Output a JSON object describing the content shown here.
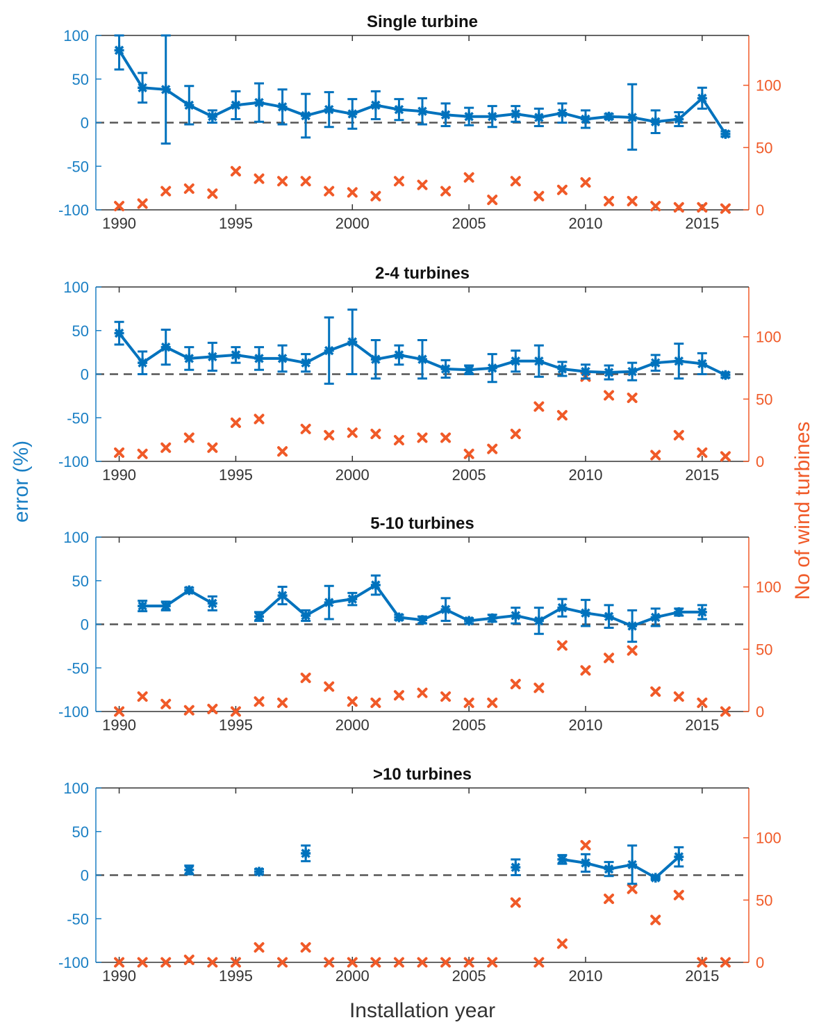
{
  "colors": {
    "error": "#0072bd",
    "error_axis": "#1a7fc4",
    "count": "#f05a28",
    "zero_line": "#555555",
    "axis": "#333333"
  },
  "figure": {
    "ylabel_left": "error (%)",
    "ylabel_right": "No of wind turbines",
    "xlabel": "Installation year"
  },
  "chart_data": [
    {
      "type": "line",
      "title": "Single turbine",
      "xlim": [
        1989,
        2017
      ],
      "ylim_left": [
        -100,
        100
      ],
      "ylim_right": [
        0,
        140
      ],
      "xticks": [
        1990,
        1995,
        2000,
        2005,
        2010,
        2015
      ],
      "yticks_left": [
        -100,
        -50,
        0,
        50,
        100
      ],
      "yticks_right": [
        0,
        50,
        100
      ],
      "zero_line": 0,
      "error_series": {
        "name": "error (%)",
        "x": [
          1990,
          1991,
          1992,
          1993,
          1994,
          1995,
          1996,
          1997,
          1998,
          1999,
          2000,
          2001,
          2002,
          2003,
          2004,
          2005,
          2006,
          2007,
          2008,
          2009,
          2010,
          2011,
          2012,
          2013,
          2014,
          2015,
          2016
        ],
        "y": [
          83,
          40,
          38,
          20,
          7,
          20,
          23,
          18,
          8,
          15,
          10,
          20,
          15,
          13,
          9,
          7,
          7,
          10,
          6,
          11,
          4,
          7,
          6,
          1,
          4,
          28,
          -13
        ],
        "err_low": [
          22,
          17,
          62,
          22,
          7,
          16,
          22,
          20,
          25,
          20,
          17,
          16,
          12,
          15,
          13,
          10,
          12,
          9,
          10,
          11,
          10,
          3,
          37,
          13,
          8,
          12,
          3
        ],
        "err_high": [
          17,
          17,
          62,
          22,
          7,
          16,
          22,
          20,
          25,
          20,
          17,
          16,
          12,
          15,
          13,
          10,
          12,
          9,
          10,
          11,
          10,
          3,
          38,
          13,
          8,
          12,
          3
        ]
      },
      "count_series": {
        "name": "No of wind turbines",
        "x": [
          1990,
          1991,
          1992,
          1993,
          1994,
          1995,
          1996,
          1997,
          1998,
          1999,
          2000,
          2001,
          2002,
          2003,
          2004,
          2005,
          2006,
          2007,
          2008,
          2009,
          2010,
          2011,
          2012,
          2013,
          2014,
          2015,
          2016
        ],
        "y": [
          3,
          5,
          15,
          17,
          13,
          31,
          25,
          23,
          23,
          15,
          14,
          11,
          23,
          20,
          15,
          26,
          8,
          23,
          11,
          16,
          22,
          7,
          7,
          3,
          2,
          2,
          1
        ]
      }
    },
    {
      "type": "line",
      "title": "2-4 turbines",
      "xlim": [
        1989,
        2017
      ],
      "ylim_left": [
        -100,
        100
      ],
      "ylim_right": [
        0,
        140
      ],
      "xticks": [
        1990,
        1995,
        2000,
        2005,
        2010,
        2015
      ],
      "yticks_left": [
        -100,
        -50,
        0,
        50,
        100
      ],
      "yticks_right": [
        0,
        50,
        100
      ],
      "zero_line": 0,
      "error_series": {
        "name": "error (%)",
        "x": [
          1990,
          1991,
          1992,
          1993,
          1994,
          1995,
          1996,
          1997,
          1998,
          1999,
          2000,
          2001,
          2002,
          2003,
          2004,
          2005,
          2006,
          2007,
          2008,
          2009,
          2010,
          2011,
          2012,
          2013,
          2014,
          2015,
          2016
        ],
        "y": [
          47,
          13,
          31,
          18,
          20,
          22,
          18,
          18,
          13,
          27,
          37,
          17,
          22,
          17,
          6,
          5,
          7,
          15,
          15,
          6,
          3,
          2,
          3,
          13,
          15,
          12,
          -1
        ],
        "err_low": [
          13,
          13,
          20,
          13,
          16,
          9,
          13,
          15,
          10,
          38,
          37,
          22,
          11,
          22,
          10,
          5,
          16,
          12,
          18,
          8,
          8,
          8,
          10,
          9,
          20,
          12,
          3
        ],
        "err_high": [
          13,
          13,
          20,
          13,
          16,
          9,
          13,
          15,
          10,
          38,
          37,
          22,
          11,
          22,
          10,
          5,
          16,
          12,
          18,
          8,
          8,
          8,
          10,
          9,
          20,
          12,
          3
        ]
      },
      "count_series": {
        "name": "No of wind turbines",
        "x": [
          1990,
          1991,
          1992,
          1993,
          1994,
          1995,
          1996,
          1997,
          1998,
          1999,
          2000,
          2001,
          2002,
          2003,
          2004,
          2005,
          2006,
          2007,
          2008,
          2009,
          2010,
          2011,
          2012,
          2013,
          2014,
          2015,
          2016
        ],
        "y": [
          7,
          6,
          11,
          19,
          11,
          31,
          34,
          8,
          26,
          21,
          23,
          22,
          17,
          19,
          19,
          6,
          10,
          22,
          44,
          37,
          68,
          53,
          51,
          5,
          21,
          7,
          4
        ]
      }
    },
    {
      "type": "line",
      "title": "5-10 turbines",
      "xlim": [
        1989,
        2017
      ],
      "ylim_left": [
        -100,
        100
      ],
      "ylim_right": [
        0,
        140
      ],
      "xticks": [
        1990,
        1995,
        2000,
        2005,
        2010,
        2015
      ],
      "yticks_left": [
        -100,
        -50,
        0,
        50,
        100
      ],
      "yticks_right": [
        0,
        50,
        100
      ],
      "zero_line": 0,
      "error_series": {
        "name": "error (%)",
        "x": [
          1990,
          1991,
          1992,
          1993,
          1994,
          1995,
          1996,
          1997,
          1998,
          1999,
          2000,
          2001,
          2002,
          2003,
          2004,
          2005,
          2006,
          2007,
          2008,
          2009,
          2010,
          2011,
          2012,
          2013,
          2014,
          2015,
          2016
        ],
        "y": [
          null,
          21,
          21,
          39,
          24,
          null,
          9,
          33,
          10,
          25,
          29,
          45,
          8,
          5,
          17,
          4,
          7,
          10,
          4,
          19,
          13,
          9,
          -2,
          8,
          14,
          14,
          null
        ],
        "err_low": [
          null,
          6,
          5,
          3,
          8,
          null,
          5,
          10,
          6,
          19,
          7,
          11,
          3,
          4,
          13,
          3,
          4,
          9,
          15,
          10,
          15,
          13,
          18,
          10,
          4,
          8,
          null
        ],
        "err_high": [
          null,
          6,
          5,
          3,
          8,
          null,
          5,
          10,
          6,
          19,
          7,
          11,
          3,
          4,
          13,
          3,
          4,
          9,
          15,
          10,
          15,
          13,
          18,
          10,
          4,
          8,
          null
        ]
      },
      "count_series": {
        "name": "No of wind turbines",
        "x": [
          1990,
          1991,
          1992,
          1993,
          1994,
          1995,
          1996,
          1997,
          1998,
          1999,
          2000,
          2001,
          2002,
          2003,
          2004,
          2005,
          2006,
          2007,
          2008,
          2009,
          2010,
          2011,
          2012,
          2013,
          2014,
          2015,
          2016
        ],
        "y": [
          0,
          12,
          6,
          1,
          2,
          0,
          8,
          7,
          27,
          20,
          8,
          7,
          13,
          15,
          12,
          7,
          7,
          22,
          19,
          53,
          33,
          43,
          49,
          16,
          12,
          7,
          0
        ]
      }
    },
    {
      "type": "line",
      "title": ">10 turbines",
      "xlim": [
        1989,
        2017
      ],
      "ylim_left": [
        -100,
        100
      ],
      "ylim_right": [
        0,
        140
      ],
      "xticks": [
        1990,
        1995,
        2000,
        2005,
        2010,
        2015
      ],
      "yticks_left": [
        -100,
        -50,
        0,
        50,
        100
      ],
      "yticks_right": [
        0,
        50,
        100
      ],
      "zero_line": 0,
      "error_series": {
        "name": "error (%)",
        "x": [
          1993,
          1996,
          1998,
          2007,
          2009,
          2010,
          2011,
          2012,
          2013,
          2014
        ],
        "y": [
          6,
          4,
          25,
          9,
          18,
          14,
          7,
          12,
          -3,
          21
        ],
        "err_low": [
          5,
          3,
          9,
          9,
          5,
          10,
          8,
          22,
          2,
          11
        ],
        "err_high": [
          5,
          3,
          9,
          9,
          5,
          10,
          8,
          22,
          2,
          11
        ],
        "connect": [
          [
            2009,
            2010,
            2011,
            2012,
            2013,
            2014
          ]
        ]
      },
      "count_series": {
        "name": "No of wind turbines",
        "x": [
          1990,
          1991,
          1992,
          1993,
          1994,
          1995,
          1996,
          1997,
          1998,
          1999,
          2000,
          2001,
          2002,
          2003,
          2004,
          2005,
          2006,
          2007,
          2008,
          2009,
          2010,
          2011,
          2012,
          2013,
          2014,
          2015,
          2016
        ],
        "y": [
          0,
          0,
          0,
          2,
          0,
          0,
          12,
          0,
          12,
          0,
          0,
          0,
          0,
          0,
          0,
          0,
          0,
          48,
          0,
          15,
          94,
          51,
          59,
          34,
          54,
          0,
          0
        ]
      }
    }
  ]
}
